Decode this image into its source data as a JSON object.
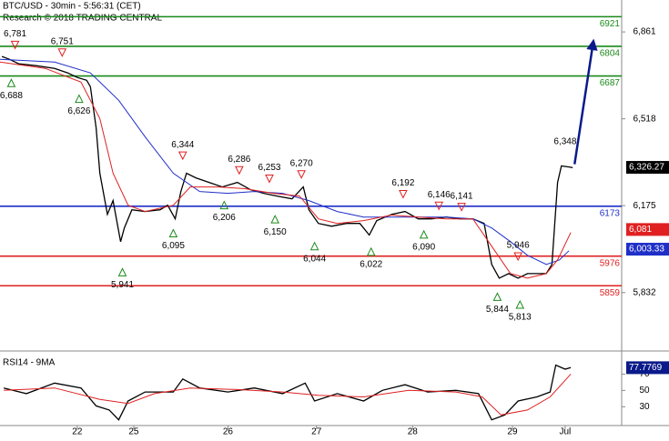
{
  "chart_data": [
    {
      "type": "line",
      "title": "BTC/USD - 30min - 5:56:31 (CET)",
      "subtitle": "Research © 2018 TRADING CENTRAL",
      "xlim": [
        0,
        330
      ],
      "ylim": [
        5605,
        6987
      ],
      "yticks": [
        {
          "value": 5832,
          "label": "5,832"
        },
        {
          "value": 6175,
          "label": "6,175"
        },
        {
          "value": 6518,
          "label": "6,518"
        },
        {
          "value": 6861,
          "label": "6,861"
        }
      ],
      "series": [
        {
          "color": "#000000",
          "x": [
            1,
            5,
            10,
            19,
            29,
            36,
            41,
            46,
            48,
            51,
            53,
            57,
            60,
            64,
            66,
            70,
            77,
            85,
            89,
            93,
            96,
            99,
            104,
            111,
            118,
            126,
            133,
            140,
            147,
            155,
            161,
            164,
            169,
            176,
            184,
            191,
            196,
            200,
            208,
            215,
            222,
            229,
            237,
            244,
            251,
            257,
            261,
            265,
            270,
            275,
            280,
            285,
            290,
            293,
            296,
            298,
            302,
            304
          ],
          "values": [
            6764,
            6753,
            6735,
            6728,
            6717,
            6699,
            6681,
            6670,
            6645,
            6483,
            6303,
            6141,
            6195,
            6033,
            6087,
            6159,
            6152,
            6159,
            6177,
            6123,
            6231,
            6303,
            6285,
            6267,
            6249,
            6267,
            6238,
            6224,
            6213,
            6202,
            6249,
            6159,
            6105,
            6094,
            6105,
            6105,
            6059,
            6116,
            6141,
            6152,
            6123,
            6123,
            6130,
            6123,
            6123,
            6105,
            5943,
            5889,
            5907,
            5889,
            5907,
            5907,
            5907,
            5943,
            6267,
            6332,
            6328,
            6325
          ]
        },
        {
          "color": "#1f2fc8",
          "x": [
            0,
            29,
            48,
            63,
            77,
            92,
            106,
            121,
            135,
            150,
            164,
            179,
            193,
            208,
            222,
            237,
            251,
            261,
            271,
            280,
            290,
            297,
            302
          ],
          "values": [
            6753,
            6742,
            6699,
            6591,
            6447,
            6303,
            6231,
            6224,
            6231,
            6224,
            6195,
            6152,
            6130,
            6130,
            6130,
            6130,
            6123,
            6087,
            6033,
            5979,
            5943,
            5961,
            5997
          ]
        },
        {
          "color": "#e02020",
          "x": [
            0,
            24,
            43,
            53,
            60,
            68,
            77,
            92,
            101,
            116,
            130,
            145,
            159,
            169,
            179,
            193,
            208,
            222,
            237,
            251,
            261,
            271,
            280,
            290,
            296,
            303
          ],
          "values": [
            6742,
            6717,
            6663,
            6519,
            6303,
            6177,
            6152,
            6177,
            6249,
            6249,
            6242,
            6224,
            6213,
            6123,
            6105,
            6116,
            6138,
            6130,
            6123,
            6123,
            6015,
            5907,
            5889,
            5907,
            5961,
            6069
          ]
        }
      ],
      "levels": [
        {
          "value": 6921,
          "color": "#1a8a1a"
        },
        {
          "value": 6804,
          "color": "#1a8a1a"
        },
        {
          "value": 6687,
          "color": "#1a8a1a"
        },
        {
          "value": 6173,
          "color": "#1f2fc8"
        },
        {
          "value": 5976,
          "color": "#e02020"
        },
        {
          "value": 5859,
          "color": "#e02020"
        }
      ],
      "highs": {
        "color": "#e02020",
        "x": [
          8,
          33,
          97,
          127,
          143,
          160,
          214,
          233,
          245,
          275
        ],
        "values": [
          6781,
          6751,
          6344,
          6286,
          6253,
          6270,
          6192,
          6146,
          6141,
          5946
        ],
        "value_labels": [
          "6,781",
          "6,751",
          "6,344",
          "6,286",
          "6,253",
          "6,270",
          "6,192",
          "6,146",
          "6,141",
          "5,946"
        ]
      },
      "lows": {
        "color": "#1a8a1a",
        "x": [
          6,
          42,
          65,
          92,
          119,
          146,
          167,
          197,
          225,
          264,
          276
        ],
        "values": [
          6688,
          6626,
          5941,
          6095,
          6206,
          6150,
          6044,
          6022,
          6090,
          5844,
          5813
        ],
        "value_labels": [
          "6,688",
          "6,626",
          "5,941",
          "6,095",
          "6,206",
          "6,150",
          "6,044",
          "6,022",
          "6,090",
          "5,844",
          "5,813"
        ]
      },
      "peak_label": {
        "x": 300,
        "value": 6348,
        "label": "6,348"
      },
      "forecast": {
        "color": "#0a1a8a",
        "x": [
          305,
          315
        ],
        "values": [
          6339,
          6825
        ]
      },
      "last_values": [
        {
          "value": 6326.27,
          "label": "6,326.27",
          "color": "#000000"
        },
        {
          "value": 6081,
          "label": "6,081",
          "color": "#e02020"
        },
        {
          "value": 6003.33,
          "label": "6,003.33",
          "color": "#1f2fc8"
        }
      ]
    },
    {
      "type": "line",
      "title": "RSI14 - 9MA",
      "xlim": [
        0,
        330
      ],
      "ylim": [
        7,
        96
      ],
      "yticks": [
        30,
        50,
        70
      ],
      "xticks": [
        {
          "value": 41,
          "label": "22"
        },
        {
          "value": 71,
          "label": "25"
        },
        {
          "value": 121,
          "label": "26"
        },
        {
          "value": 168,
          "label": "27"
        },
        {
          "value": 219,
          "label": "28"
        },
        {
          "value": 272,
          "label": "29"
        },
        {
          "value": 300,
          "label": "Jul"
        }
      ],
      "series": [
        {
          "color": "#000000",
          "x": [
            2,
            14,
            29,
            43,
            51,
            58,
            63,
            68,
            77,
            92,
            97,
            106,
            121,
            135,
            150,
            162,
            167,
            179,
            193,
            203,
            215,
            227,
            242,
            254,
            261,
            268,
            275,
            285,
            292,
            295,
            300,
            303
          ],
          "values": [
            53,
            46,
            59,
            53,
            31,
            26,
            14,
            37,
            48,
            48,
            64,
            53,
            48,
            53,
            46,
            59,
            37,
            46,
            37,
            50,
            57,
            48,
            50,
            46,
            14,
            20,
            37,
            42,
            48,
            81,
            76,
            78
          ]
        },
        {
          "color": "#e02020",
          "x": [
            2,
            29,
            53,
            68,
            82,
            101,
            126,
            150,
            169,
            193,
            217,
            242,
            256,
            266,
            280,
            292,
            303
          ],
          "values": [
            50,
            53,
            39,
            34,
            46,
            53,
            51,
            48,
            44,
            42,
            50,
            48,
            42,
            20,
            26,
            42,
            70
          ]
        }
      ],
      "last_values": [
        {
          "value": 77.7769,
          "label": "77.7769",
          "color": "#0a1a8a"
        }
      ]
    }
  ]
}
